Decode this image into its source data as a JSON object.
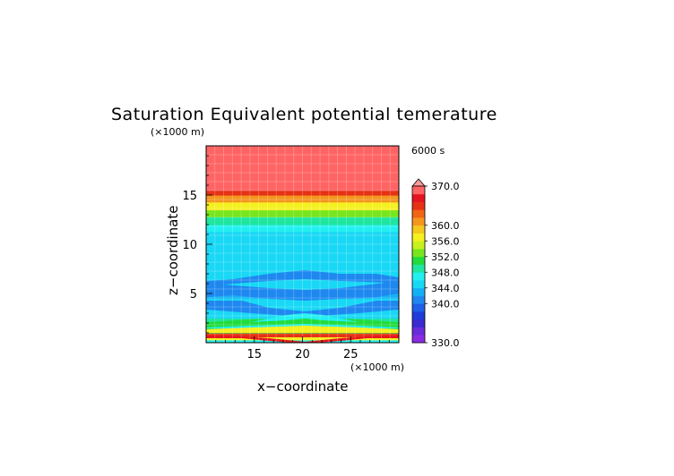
{
  "chart_data": {
    "type": "heatmap",
    "title": "Saturation Equivalent potential temerature",
    "xlabel": "x−coordinate",
    "ylabel": "z−coordinate",
    "x_unit": "(×1000 m)",
    "y_unit": "(×1000 m)",
    "time_label": "6000 s",
    "xlim": [
      10,
      30
    ],
    "ylim": [
      0,
      20
    ],
    "xticks": [
      15,
      20,
      25
    ],
    "yticks": [
      5,
      10,
      15
    ],
    "colorbar": {
      "range": [
        330,
        370
      ],
      "tick_labels": [
        "370.0",
        "360.0",
        "356.0",
        "352.0",
        "348.0",
        "344.0",
        "340.0",
        "330.0"
      ],
      "tick_values": [
        370,
        360,
        356,
        352,
        348,
        344,
        340,
        330
      ],
      "colors": [
        "#8a2be2",
        "#6a2bd8",
        "#3a2ad0",
        "#1e3cd8",
        "#1e60e6",
        "#1e88f0",
        "#14b0f5",
        "#19d8f5",
        "#22f0f0",
        "#1ee6a0",
        "#22dc3c",
        "#78e61e",
        "#c8f01e",
        "#f5f020",
        "#f5c81e",
        "#f5961e",
        "#f06414",
        "#e63214",
        "#e6141e",
        "#ff6464",
        "#ff9a9a"
      ],
      "color_bounds": [
        330,
        332,
        334,
        336,
        338,
        340,
        342,
        344,
        346,
        348,
        350,
        352,
        354,
        356,
        358,
        360,
        362,
        364,
        366,
        368,
        370
      ]
    },
    "z_profile_x_center": [
      {
        "z": 0.0,
        "value": 347
      },
      {
        "z": 0.3,
        "value": 356
      },
      {
        "z": 0.6,
        "value": 364
      },
      {
        "z": 1.0,
        "value": 350
      },
      {
        "z": 1.5,
        "value": 347
      },
      {
        "z": 2.0,
        "value": 348
      },
      {
        "z": 2.5,
        "value": 345
      },
      {
        "z": 3.0,
        "value": 345
      },
      {
        "z": 3.5,
        "value": 344
      },
      {
        "z": 4.5,
        "value": 343
      },
      {
        "z": 5.5,
        "value": 344
      },
      {
        "z": 6.5,
        "value": 344.5
      },
      {
        "z": 8.0,
        "value": 345
      },
      {
        "z": 9.5,
        "value": 345
      },
      {
        "z": 10.5,
        "value": 345.5
      },
      {
        "z": 11.3,
        "value": 347
      },
      {
        "z": 12.0,
        "value": 349
      },
      {
        "z": 12.8,
        "value": 353
      },
      {
        "z": 13.5,
        "value": 357
      },
      {
        "z": 14.3,
        "value": 361
      },
      {
        "z": 15.0,
        "value": 365
      },
      {
        "z": 15.5,
        "value": 369
      },
      {
        "z": 20.0,
        "value": 371
      }
    ]
  }
}
